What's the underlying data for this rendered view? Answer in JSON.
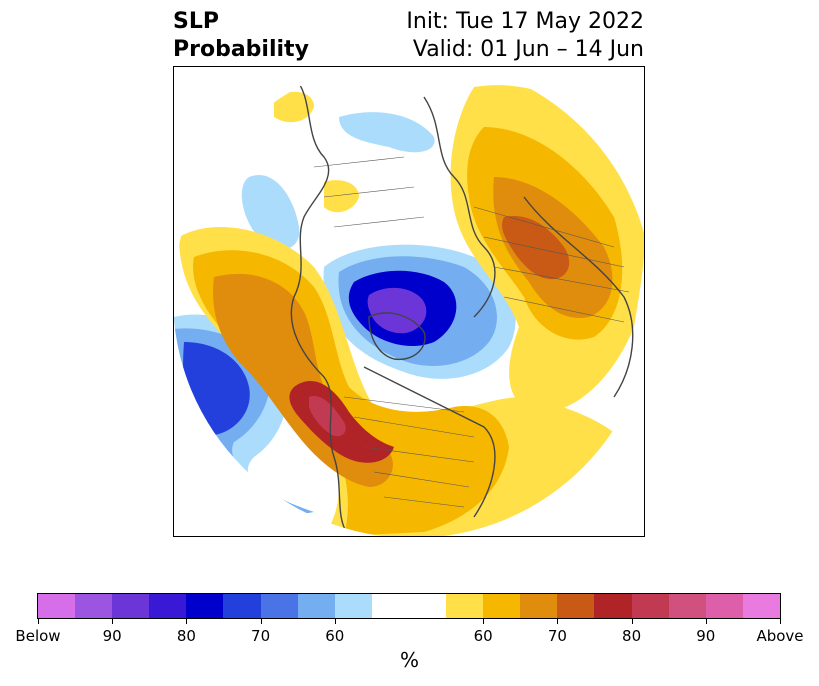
{
  "title": {
    "variable": "SLP",
    "product": "Probability",
    "init": "Init: Tue 17 May 2022",
    "valid": "Valid: 01 Jun – 14 Jun"
  },
  "colorbar": {
    "colors": [
      "#d56ee8",
      "#9b55e0",
      "#6b35d8",
      "#3a19d6",
      "#0000cd",
      "#2340dd",
      "#4a73e6",
      "#74aef0",
      "#acdcfb",
      "#ffffff",
      "#ffe048",
      "#f5b700",
      "#e08c0d",
      "#c85a16",
      "#b02427",
      "#c13a52",
      "#d0517d",
      "#dd5faa",
      "#e87ae0"
    ],
    "tick_labels": [
      "Below",
      "90",
      "80",
      "70",
      "60",
      "60",
      "70",
      "80",
      "90",
      "Above"
    ],
    "unit": "%"
  },
  "legend_colors": {
    "below_60": "#acdcfb",
    "below_70": "#74aef0",
    "below_80": "#2340dd",
    "below_90": "#0000cd",
    "below_max": "#6b35d8",
    "above_60": "#ffe048",
    "above_65": "#f5b700",
    "above_70": "#e08c0d",
    "above_75": "#c85a16",
    "above_80": "#b02427",
    "above_85": "#c13a52"
  }
}
